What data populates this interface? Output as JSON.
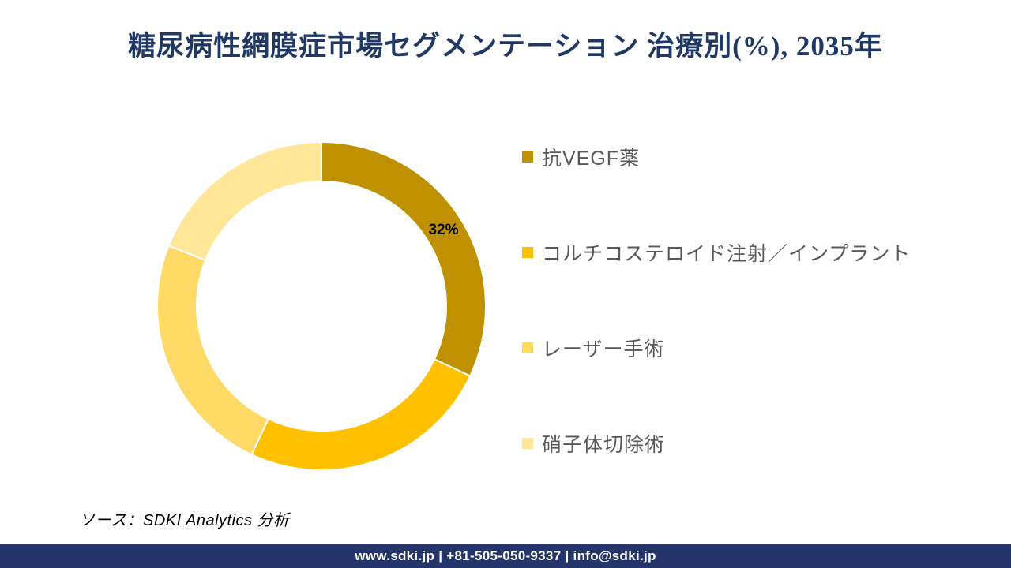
{
  "title": "糖尿病性網膜症市場セグメンテーション 治療別(%), 2035年",
  "chart_data": {
    "type": "pie",
    "subtype": "donut",
    "title": "糖尿病性網膜症市場セグメンテーション 治療別(%), 2035年",
    "unit": "%",
    "year": "2035年",
    "legend_position": "right",
    "start_angle_deg": 0,
    "direction": "clockwise",
    "donut_hole_ratio": 0.76,
    "segments": [
      {
        "name": "抗VEGF薬",
        "value": 32,
        "label": "32%",
        "color": "#BF9000"
      },
      {
        "name": "コルチコステロイド注射／インプラント",
        "value": 25,
        "label": "",
        "color": "#FFC000"
      },
      {
        "name": "レーザー手術",
        "value": 24,
        "label": "",
        "color": "#FFD966"
      },
      {
        "name": "硝子体切除術",
        "value": 19,
        "label": "",
        "color": "#FFE699"
      }
    ]
  },
  "source": {
    "text": "ソース：SDKI Analytics 分析"
  },
  "footer": {
    "text": "www.sdki.jp | +81-505-050-9337 | info@sdki.jp",
    "background": "#24356B"
  },
  "colors": {
    "title_text": "#203864",
    "legend_text": "#595959",
    "slice_label_text": "#000000",
    "separator": "#FFFFFF"
  }
}
